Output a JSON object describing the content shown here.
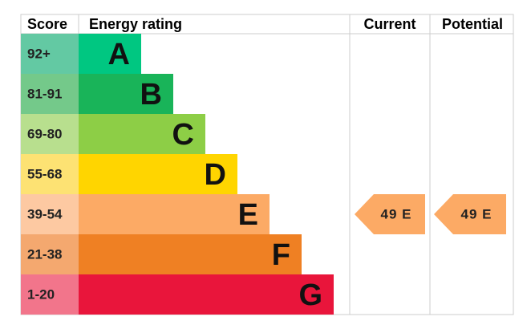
{
  "header": {
    "score": "Score",
    "rating": "Energy rating",
    "current": "Current",
    "potential": "Potential"
  },
  "bands": [
    {
      "score": "92+",
      "letter": "A",
      "color": "#00c781",
      "score_color": "#63c9a3"
    },
    {
      "score": "81-91",
      "letter": "B",
      "color": "#19b459",
      "score_color": "#74c98a"
    },
    {
      "score": "69-80",
      "letter": "C",
      "color": "#8dce46",
      "score_color": "#b8df8e"
    },
    {
      "score": "55-68",
      "letter": "D",
      "color": "#ffd500",
      "score_color": "#fde273"
    },
    {
      "score": "39-54",
      "letter": "E",
      "color": "#fcaa65",
      "score_color": "#fdc9a2"
    },
    {
      "score": "21-38",
      "letter": "F",
      "color": "#ef8023",
      "score_color": "#f4a86f"
    },
    {
      "score": "1-20",
      "letter": "G",
      "color": "#e9153b",
      "score_color": "#f2758b"
    }
  ],
  "current": {
    "label": "49 E",
    "color": "#fcaa65"
  },
  "potential": {
    "label": "49 E",
    "color": "#fcaa65"
  }
}
